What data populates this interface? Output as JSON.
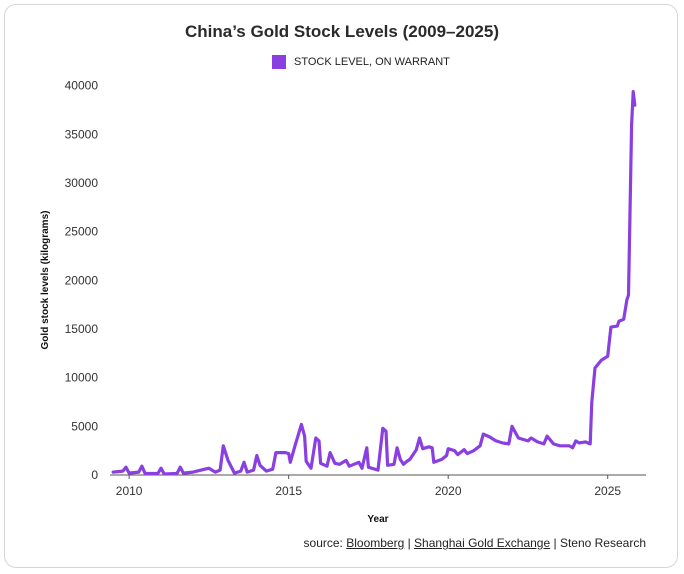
{
  "chart_data": {
    "type": "line",
    "title": "China’s Gold Stock Levels (2009–2025)",
    "xlabel": "Year",
    "ylabel": "Gold stock levels (kilograms)",
    "xlim": [
      2009.4,
      2026.2
    ],
    "ylim": [
      0,
      41000
    ],
    "x_ticks": [
      2010,
      2015,
      2020,
      2025
    ],
    "y_ticks": [
      0,
      5000,
      10000,
      15000,
      20000,
      25000,
      30000,
      35000,
      40000
    ],
    "grid": false,
    "legend_position": "top-center",
    "series": [
      {
        "name": "STOCK LEVEL, ON WARRANT",
        "color": "#8a3fe0",
        "points": [
          [
            2009.5,
            300
          ],
          [
            2009.8,
            400
          ],
          [
            2009.9,
            800
          ],
          [
            2010.0,
            200
          ],
          [
            2010.3,
            300
          ],
          [
            2010.4,
            900
          ],
          [
            2010.5,
            150
          ],
          [
            2010.9,
            150
          ],
          [
            2011.0,
            700
          ],
          [
            2011.1,
            100
          ],
          [
            2011.5,
            150
          ],
          [
            2011.6,
            800
          ],
          [
            2011.7,
            200
          ],
          [
            2012.0,
            300
          ],
          [
            2012.5,
            700
          ],
          [
            2012.7,
            300
          ],
          [
            2012.85,
            500
          ],
          [
            2012.95,
            3000
          ],
          [
            2013.1,
            1500
          ],
          [
            2013.3,
            200
          ],
          [
            2013.5,
            400
          ],
          [
            2013.6,
            1300
          ],
          [
            2013.7,
            300
          ],
          [
            2013.9,
            500
          ],
          [
            2014.0,
            2000
          ],
          [
            2014.1,
            1000
          ],
          [
            2014.3,
            400
          ],
          [
            2014.5,
            600
          ],
          [
            2014.6,
            2300
          ],
          [
            2014.9,
            2300
          ],
          [
            2015.0,
            2200
          ],
          [
            2015.05,
            1300
          ],
          [
            2015.2,
            3000
          ],
          [
            2015.4,
            5200
          ],
          [
            2015.5,
            4000
          ],
          [
            2015.55,
            1400
          ],
          [
            2015.7,
            700
          ],
          [
            2015.85,
            3800
          ],
          [
            2015.95,
            3500
          ],
          [
            2016.0,
            1200
          ],
          [
            2016.2,
            900
          ],
          [
            2016.3,
            2300
          ],
          [
            2016.45,
            1200
          ],
          [
            2016.6,
            1100
          ],
          [
            2016.8,
            1500
          ],
          [
            2016.9,
            900
          ],
          [
            2017.2,
            1300
          ],
          [
            2017.3,
            700
          ],
          [
            2017.45,
            2800
          ],
          [
            2017.5,
            800
          ],
          [
            2017.8,
            500
          ],
          [
            2017.95,
            4800
          ],
          [
            2018.05,
            4500
          ],
          [
            2018.1,
            1000
          ],
          [
            2018.3,
            1100
          ],
          [
            2018.4,
            2800
          ],
          [
            2018.5,
            1600
          ],
          [
            2018.6,
            1100
          ],
          [
            2018.7,
            1400
          ],
          [
            2018.8,
            1600
          ],
          [
            2019.0,
            2600
          ],
          [
            2019.1,
            3800
          ],
          [
            2019.2,
            2700
          ],
          [
            2019.4,
            2900
          ],
          [
            2019.5,
            2800
          ],
          [
            2019.55,
            1300
          ],
          [
            2019.8,
            1600
          ],
          [
            2019.95,
            2000
          ],
          [
            2020.0,
            2700
          ],
          [
            2020.2,
            2500
          ],
          [
            2020.3,
            2100
          ],
          [
            2020.5,
            2600
          ],
          [
            2020.6,
            2200
          ],
          [
            2020.8,
            2500
          ],
          [
            2021.0,
            3000
          ],
          [
            2021.1,
            4200
          ],
          [
            2021.3,
            3900
          ],
          [
            2021.5,
            3500
          ],
          [
            2021.7,
            3300
          ],
          [
            2021.9,
            3200
          ],
          [
            2022.0,
            5000
          ],
          [
            2022.2,
            3800
          ],
          [
            2022.5,
            3500
          ],
          [
            2022.6,
            3800
          ],
          [
            2022.8,
            3400
          ],
          [
            2023.0,
            3200
          ],
          [
            2023.1,
            4000
          ],
          [
            2023.3,
            3200
          ],
          [
            2023.5,
            3000
          ],
          [
            2023.8,
            3000
          ],
          [
            2023.9,
            2800
          ],
          [
            2024.0,
            3500
          ],
          [
            2024.1,
            3300
          ],
          [
            2024.3,
            3400
          ],
          [
            2024.45,
            3200
          ],
          [
            2024.5,
            7500
          ],
          [
            2024.6,
            11000
          ],
          [
            2024.8,
            11800
          ],
          [
            2025.0,
            12200
          ],
          [
            2025.1,
            15200
          ],
          [
            2025.3,
            15300
          ],
          [
            2025.35,
            15800
          ],
          [
            2025.5,
            16000
          ],
          [
            2025.6,
            18000
          ],
          [
            2025.65,
            18500
          ],
          [
            2025.75,
            36000
          ],
          [
            2025.8,
            39400
          ],
          [
            2025.85,
            38000
          ]
        ]
      }
    ]
  },
  "source": {
    "prefix": "source: ",
    "bloomberg": "Bloomberg",
    "sep1": " | ",
    "sge": "Shanghai Gold Exchange",
    "sep2": " | Steno Research"
  }
}
